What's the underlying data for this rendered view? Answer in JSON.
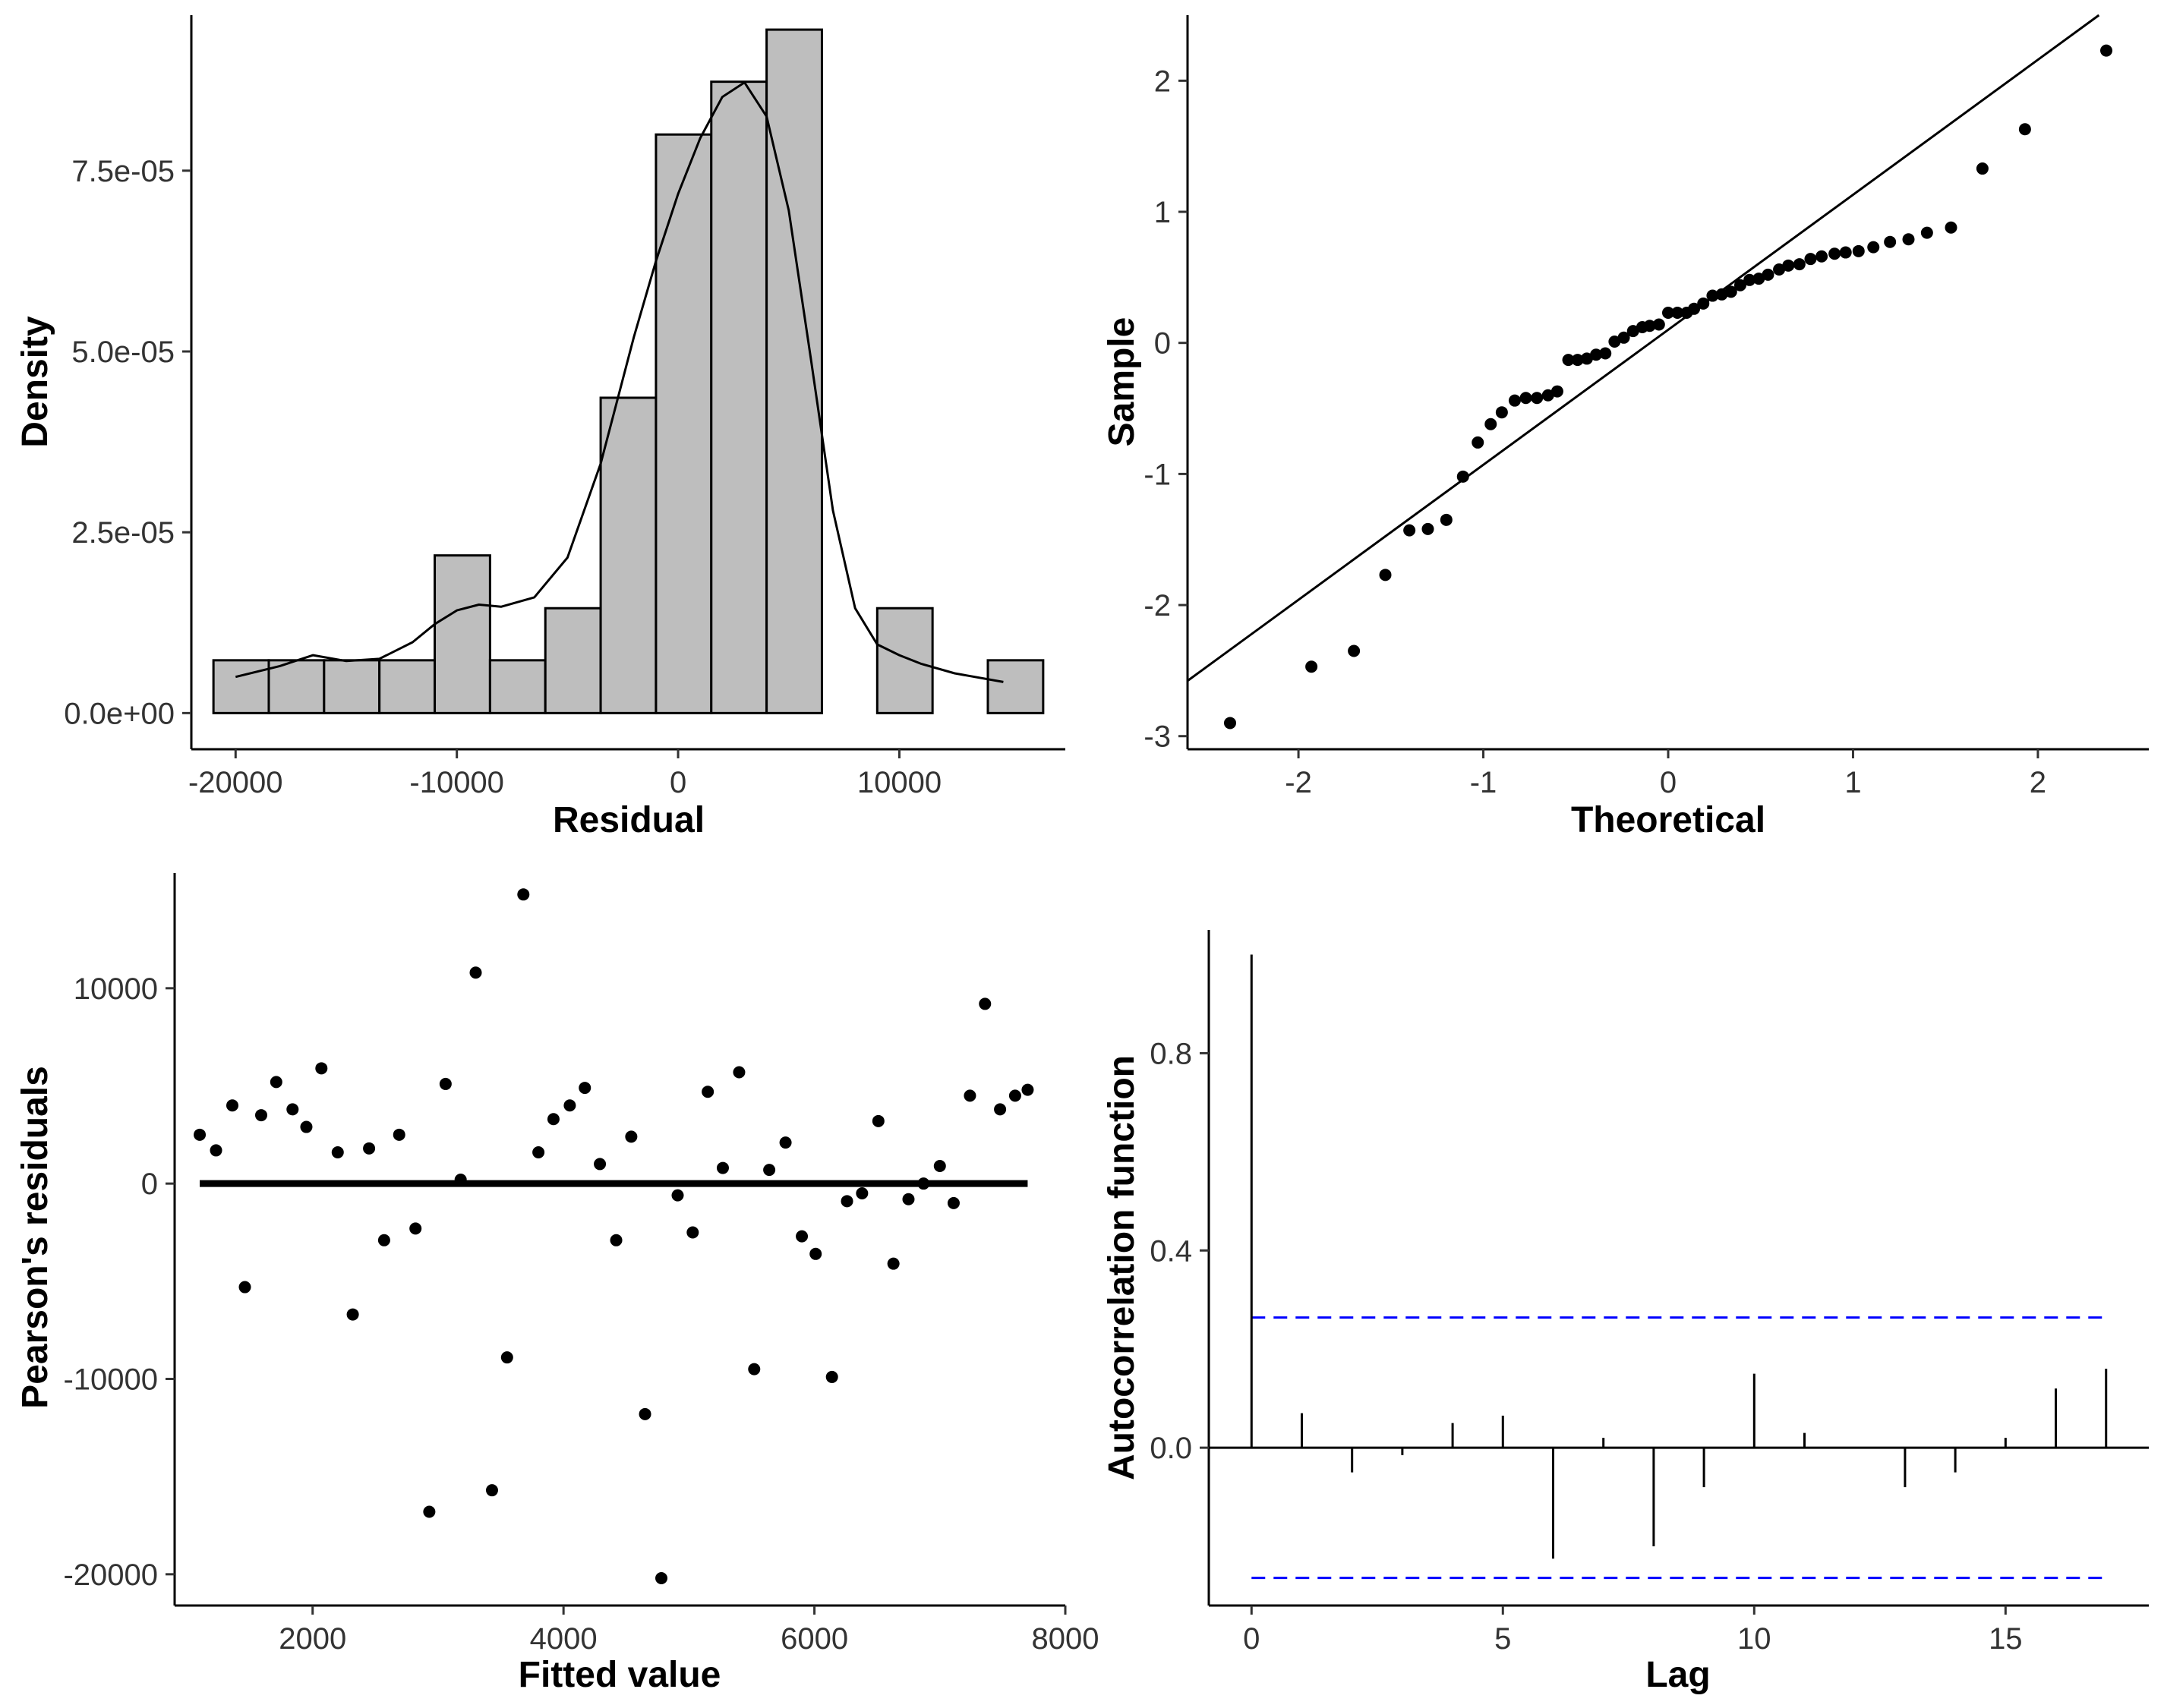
{
  "chart_data": [
    {
      "type": "bar",
      "xlabel": "Residual",
      "ylabel": "Density",
      "xlim": [
        -22000,
        17500
      ],
      "ylim": [
        -5e-06,
        9.65e-05
      ],
      "x_ticks": [
        -20000,
        -10000,
        0,
        10000
      ],
      "x_tick_labels": [
        "-20000",
        "-10000",
        "0",
        "10000"
      ],
      "y_ticks": [
        0,
        2.5e-05,
        5e-05,
        7.5e-05
      ],
      "y_tick_labels": [
        "0.0e+00",
        "2.5e-05",
        "5.0e-05",
        "7.5e-05"
      ],
      "bins": [
        {
          "x0": -21000,
          "x1": -18500,
          "density": 7.3e-06
        },
        {
          "x0": -18500,
          "x1": -16000,
          "density": 7.3e-06
        },
        {
          "x0": -16000,
          "x1": -13500,
          "density": 7.3e-06
        },
        {
          "x0": -13500,
          "x1": -11000,
          "density": 7.3e-06
        },
        {
          "x0": -11000,
          "x1": -8500,
          "density": 2.18e-05
        },
        {
          "x0": -8500,
          "x1": -6000,
          "density": 7.3e-06
        },
        {
          "x0": -6000,
          "x1": -3500,
          "density": 1.45e-05
        },
        {
          "x0": -3500,
          "x1": -1000,
          "density": 4.36e-05
        },
        {
          "x0": -1000,
          "x1": 1500,
          "density": 8e-05
        },
        {
          "x0": 1500,
          "x1": 4000,
          "density": 8.73e-05
        },
        {
          "x0": 4000,
          "x1": 6500,
          "density": 9.45e-05
        },
        {
          "x0": 6500,
          "x1": 9000,
          "density": 0
        },
        {
          "x0": 9000,
          "x1": 11500,
          "density": 1.45e-05
        },
        {
          "x0": 11500,
          "x1": 14000,
          "density": 0
        },
        {
          "x0": 14000,
          "x1": 16500,
          "density": 7.3e-06
        }
      ],
      "density_curve": {
        "x": [
          -20000,
          -18000,
          -16500,
          -15000,
          -13500,
          -12000,
          -11000,
          -10000,
          -9000,
          -8000,
          -6500,
          -5000,
          -3500,
          -2000,
          -1000,
          0,
          1000,
          2000,
          3000,
          4000,
          5000,
          6000,
          7000,
          8000,
          9000,
          10000,
          11000,
          12500,
          14700
        ],
        "y": [
          5e-06,
          6.5e-06,
          8e-06,
          7.2e-06,
          7.5e-06,
          9.8e-06,
          1.23e-05,
          1.42e-05,
          1.5e-05,
          1.47e-05,
          1.6e-05,
          2.15e-05,
          3.45e-05,
          5.2e-05,
          6.25e-05,
          7.18e-05,
          7.95e-05,
          8.52e-05,
          8.72e-05,
          8.25e-05,
          6.95e-05,
          4.9e-05,
          2.8e-05,
          1.45e-05,
          9.5e-06,
          8e-06,
          6.8e-06,
          5.5e-06,
          4.3e-06
        ]
      }
    },
    {
      "type": "scatter",
      "xlabel": "Theoretical",
      "ylabel": "Sample",
      "xlim": [
        -2.6,
        2.6
      ],
      "ylim": [
        -3.1,
        2.5
      ],
      "x_ticks": [
        -2,
        -1,
        0,
        1,
        2
      ],
      "x_tick_labels": [
        "-2",
        "-1",
        "0",
        "1",
        "2"
      ],
      "y_ticks": [
        -3,
        -2,
        -1,
        0,
        1,
        2
      ],
      "y_tick_labels": [
        "-3",
        "-2",
        "-1",
        "0",
        "1",
        "2"
      ],
      "reference_line": {
        "intercept": 0.1,
        "slope": 1.03
      },
      "x": [
        -2.37,
        -1.93,
        -1.7,
        -1.53,
        -1.4,
        -1.3,
        -1.2,
        -1.11,
        -1.03,
        -0.96,
        -0.9,
        -0.83,
        -0.77,
        -0.71,
        -0.65,
        -0.6,
        -0.54,
        -0.49,
        -0.44,
        -0.39,
        -0.34,
        -0.29,
        -0.24,
        -0.19,
        -0.14,
        -0.1,
        -0.05,
        0.0,
        0.05,
        0.1,
        0.14,
        0.19,
        0.24,
        0.29,
        0.34,
        0.39,
        0.44,
        0.49,
        0.54,
        0.6,
        0.65,
        0.71,
        0.77,
        0.83,
        0.9,
        0.96,
        1.03,
        1.11,
        1.2,
        1.3,
        1.4,
        1.53,
        1.7,
        1.93,
        2.37
      ],
      "y": [
        -2.9,
        -2.47,
        -2.35,
        -1.77,
        -1.43,
        -1.42,
        -1.35,
        -1.02,
        -0.76,
        -0.62,
        -0.53,
        -0.44,
        -0.42,
        -0.42,
        -0.4,
        -0.37,
        -0.13,
        -0.13,
        -0.12,
        -0.09,
        -0.08,
        0.01,
        0.04,
        0.09,
        0.12,
        0.13,
        0.14,
        0.23,
        0.23,
        0.23,
        0.26,
        0.3,
        0.36,
        0.37,
        0.39,
        0.44,
        0.48,
        0.49,
        0.52,
        0.56,
        0.59,
        0.6,
        0.64,
        0.66,
        0.68,
        0.69,
        0.7,
        0.73,
        0.77,
        0.79,
        0.84,
        0.88,
        1.33,
        1.63,
        2.23
      ]
    },
    {
      "type": "scatter",
      "xlabel": "Fitted value",
      "ylabel": "Pearson's residuals",
      "xlim": [
        900,
        8000
      ],
      "ylim": [
        -21600,
        15900
      ],
      "x_ticks": [
        2000,
        4000,
        6000,
        8000
      ],
      "x_tick_labels": [
        "2000",
        "4000",
        "6000",
        "8000"
      ],
      "y_ticks": [
        -20000,
        -10000,
        0,
        10000
      ],
      "y_tick_labels": [
        "-20000",
        "-10000",
        "0",
        "10000"
      ],
      "zero_line": {
        "y": 0,
        "x_from": 1100,
        "x_to": 7700
      },
      "x": [
        1100,
        1230,
        1360,
        1460,
        1590,
        1710,
        1840,
        1950,
        2070,
        2200,
        2320,
        2450,
        2570,
        2690,
        2820,
        2930,
        3060,
        3180,
        3300,
        3430,
        3550,
        3680,
        3800,
        3920,
        4050,
        4170,
        4290,
        4420,
        4540,
        4650,
        4780,
        4910,
        5030,
        5150,
        5270,
        5400,
        5520,
        5640,
        5770,
        5900,
        6010,
        6140,
        6260,
        6380,
        6510,
        6630,
        6750,
        6870,
        7000,
        7110,
        7240,
        7360,
        7480,
        7600,
        7700
      ],
      "y": [
        2500,
        1700,
        4000,
        -5300,
        3500,
        5200,
        3800,
        2900,
        5900,
        1600,
        -6700,
        1800,
        -2900,
        2500,
        -2300,
        -16800,
        5100,
        200,
        10800,
        -15700,
        -8900,
        14800,
        1600,
        3300,
        4000,
        4900,
        1000,
        -2900,
        2400,
        -11800,
        -20200,
        -600,
        -2500,
        4700,
        800,
        5700,
        -9500,
        700,
        2100,
        -2700,
        -3600,
        -9900,
        -900,
        -500,
        3200,
        -4100,
        -800,
        0,
        900,
        -1000,
        4500,
        9200,
        3800,
        4500,
        4800
      ]
    },
    {
      "type": "bar",
      "xlabel": "Lag",
      "ylabel": "Autocorrelation function",
      "xlim": [
        -0.85,
        17.85
      ],
      "ylim": [
        -0.32,
        1.05
      ],
      "x_ticks": [
        0,
        5,
        10,
        15
      ],
      "x_tick_labels": [
        "0",
        "5",
        "10",
        "15"
      ],
      "y_ticks": [
        0,
        0.4,
        0.8
      ],
      "y_tick_labels": [
        "0.0",
        "0.4",
        "0.8"
      ],
      "confidence_bounds": [
        0.264,
        -0.264
      ],
      "bound_color": "#0000ff",
      "lags": [
        0,
        1,
        2,
        3,
        4,
        5,
        6,
        7,
        8,
        9,
        10,
        11,
        12,
        13,
        14,
        15,
        16,
        17
      ],
      "acf": [
        1.0,
        0.07,
        -0.05,
        -0.015,
        0.05,
        0.065,
        -0.225,
        0.02,
        -0.2,
        -0.08,
        0.15,
        0.03,
        0.0,
        -0.08,
        -0.05,
        0.02,
        0.12,
        0.16
      ]
    }
  ]
}
